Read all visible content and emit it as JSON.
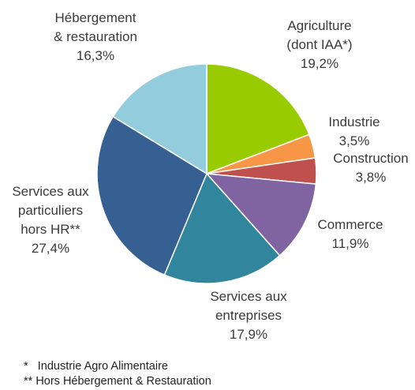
{
  "chart_data": {
    "type": "pie",
    "title": "",
    "slices": [
      {
        "label": [
          "Agriculture",
          "(dont IAA*)"
        ],
        "value": 19.2,
        "value_text": "19,2%",
        "color": "#99CC00"
      },
      {
        "label": [
          "Industrie"
        ],
        "value": 3.5,
        "value_text": "3,5%",
        "color": "#F79646"
      },
      {
        "label": [
          "Construction"
        ],
        "value": 3.8,
        "value_text": "3,8%",
        "color": "#C0504D"
      },
      {
        "label": [
          "Commerce"
        ],
        "value": 11.9,
        "value_text": "11,9%",
        "color": "#8064A2"
      },
      {
        "label": [
          "Services aux",
          "entreprises"
        ],
        "value": 17.9,
        "value_text": "17,9%",
        "color": "#31859C"
      },
      {
        "label": [
          "Services aux",
          "particuliers",
          "hors HR**"
        ],
        "value": 27.4,
        "value_text": "27,4%",
        "color": "#376092"
      },
      {
        "label": [
          "Hébergement",
          "& restauration"
        ],
        "value": 16.3,
        "value_text": "16,3%",
        "color": "#93CDDD"
      }
    ],
    "legend": "none"
  },
  "footnotes": {
    "note1": "*   Industrie Agro Alimentaire",
    "note2": "** Hors Hébergement & Restauration"
  }
}
